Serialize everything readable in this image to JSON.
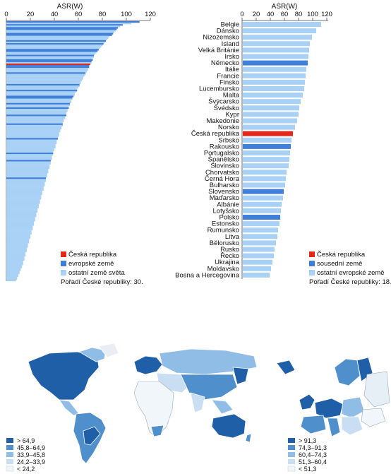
{
  "chart_data": [
    {
      "type": "bar",
      "orientation": "horizontal",
      "xlabel": "ASR(W)",
      "xticks": [
        "0",
        "20",
        "40",
        "60",
        "80",
        "100",
        "120"
      ],
      "xlim": [
        0,
        120
      ],
      "ylabel": "",
      "note": "Pořadí České republiky: 30.",
      "legend": [
        {
          "label": "Česká republika",
          "color": "#e0291b"
        },
        {
          "label": "evropské země",
          "color": "#3f7fd9"
        },
        {
          "label": "ostatní země světa",
          "color": "#a9d1f5"
        }
      ],
      "legend_position": "bottom-right",
      "highlight_ranks": {
        "czech": 30,
        "european": [
          1,
          3,
          5,
          6,
          9,
          10,
          14,
          16,
          20,
          21,
          24,
          27,
          28,
          31,
          32,
          36,
          44,
          48,
          52,
          53,
          57,
          60,
          65,
          71,
          81,
          91,
          96,
          108
        ]
      },
      "values": [
        111,
        104,
        97,
        95,
        93,
        92,
        91,
        90,
        89,
        88,
        86,
        85,
        84,
        83,
        82,
        81,
        80,
        79,
        78,
        77,
        76,
        75,
        74,
        73,
        73,
        72,
        72,
        71,
        71,
        70,
        69,
        69,
        68,
        68,
        67,
        66,
        66,
        65,
        64,
        64,
        63,
        62,
        62,
        61,
        61,
        60,
        59,
        59,
        58,
        57,
        57,
        56,
        55,
        55,
        54,
        54,
        53,
        53,
        52,
        52,
        51,
        51,
        50,
        50,
        50,
        49,
        49,
        48,
        48,
        47,
        47,
        47,
        46,
        46,
        45,
        45,
        44,
        44,
        44,
        43,
        43,
        42,
        42,
        42,
        41,
        41,
        41,
        40,
        40,
        39,
        39,
        39,
        38,
        38,
        38,
        37,
        37,
        37,
        36,
        36,
        36,
        35,
        35,
        35,
        34,
        34,
        34,
        33,
        33,
        33,
        32,
        32,
        32,
        31,
        31,
        31,
        30,
        30,
        30,
        29,
        29,
        29,
        28,
        28,
        28,
        27,
        27,
        27,
        26,
        26,
        26,
        25,
        25,
        25,
        24,
        24,
        24,
        23,
        23,
        23,
        22,
        22,
        22,
        21,
        21,
        21,
        20,
        20,
        20,
        19,
        19,
        19,
        18,
        18,
        18,
        17,
        17,
        17,
        16,
        16,
        16,
        15,
        15,
        15,
        14,
        14,
        14,
        13,
        13,
        12,
        12,
        11,
        11,
        10,
        10,
        9,
        9,
        8
      ]
    },
    {
      "type": "bar",
      "orientation": "horizontal",
      "xlabel": "ASR(W)",
      "xticks": [
        "0",
        "20",
        "40",
        "60",
        "80",
        "100",
        "120"
      ],
      "xlim": [
        0,
        120
      ],
      "categories": [
        "Belgie",
        "Dánsko",
        "Nizozemsko",
        "Island",
        "Velká Británie",
        "Irsko",
        "Německo",
        "Itálie",
        "Francie",
        "Finsko",
        "Lucembursko",
        "Malta",
        "Švýcarsko",
        "Švédsko",
        "Kypr",
        "Makedonie",
        "Norsko",
        "Česká republika",
        "Srbsko",
        "Rakousko",
        "Portugalsko",
        "Španělsko",
        "Slovinsko",
        "Chorvatsko",
        "Černá Hora",
        "Bulharsko",
        "Slovensko",
        "Maďarsko",
        "Albánie",
        "Lotyšsko",
        "Polsko",
        "Estonsko",
        "Rumunsko",
        "Litva",
        "Bělorusko",
        "Rusko",
        "Řecko",
        "Ukrajina",
        "Moldavsko",
        "Bosna a Hercegovina"
      ],
      "values": [
        111,
        104,
        98,
        95,
        94,
        93,
        92,
        90,
        89,
        88,
        87,
        85,
        82,
        80,
        79,
        77,
        74,
        71,
        69,
        68,
        67,
        66,
        65,
        62,
        61,
        60,
        58,
        57,
        55,
        54,
        53,
        52,
        50,
        49,
        47,
        45,
        44,
        42,
        40,
        38
      ],
      "group": [
        "other",
        "other",
        "other",
        "other",
        "other",
        "other",
        "neighbor",
        "other",
        "other",
        "other",
        "other",
        "other",
        "other",
        "other",
        "other",
        "other",
        "other",
        "czech",
        "other",
        "neighbor",
        "other",
        "other",
        "other",
        "other",
        "other",
        "other",
        "neighbor",
        "other",
        "other",
        "other",
        "neighbor",
        "other",
        "other",
        "other",
        "other",
        "other",
        "other",
        "other",
        "other",
        "other"
      ],
      "note": "Pořadí České republiky: 18.",
      "legend": [
        {
          "label": "Česká republika",
          "color": "#e0291b"
        },
        {
          "label": "sousední země",
          "color": "#3f7fd9"
        },
        {
          "label": "ostatní evropské země",
          "color": "#a9d1f5"
        }
      ],
      "legend_position": "bottom-right"
    }
  ],
  "world_map": {
    "legend": [
      "> 64,9",
      "45,8–64,9",
      "33,9–45,8",
      "24,2–33,9",
      "< 24,2"
    ],
    "colors": [
      "#1f5fa8",
      "#4f8fcc",
      "#8fbde6",
      "#c9def2",
      "#f1f6fb"
    ]
  },
  "europe_map": {
    "legend": [
      "> 91,3",
      "74,3–91,3",
      "60,4–74,3",
      "51,3–60,4",
      "< 51,3"
    ],
    "colors": [
      "#1f5fa8",
      "#4f8fcc",
      "#8fbde6",
      "#c9def2",
      "#f1f6fb"
    ]
  }
}
